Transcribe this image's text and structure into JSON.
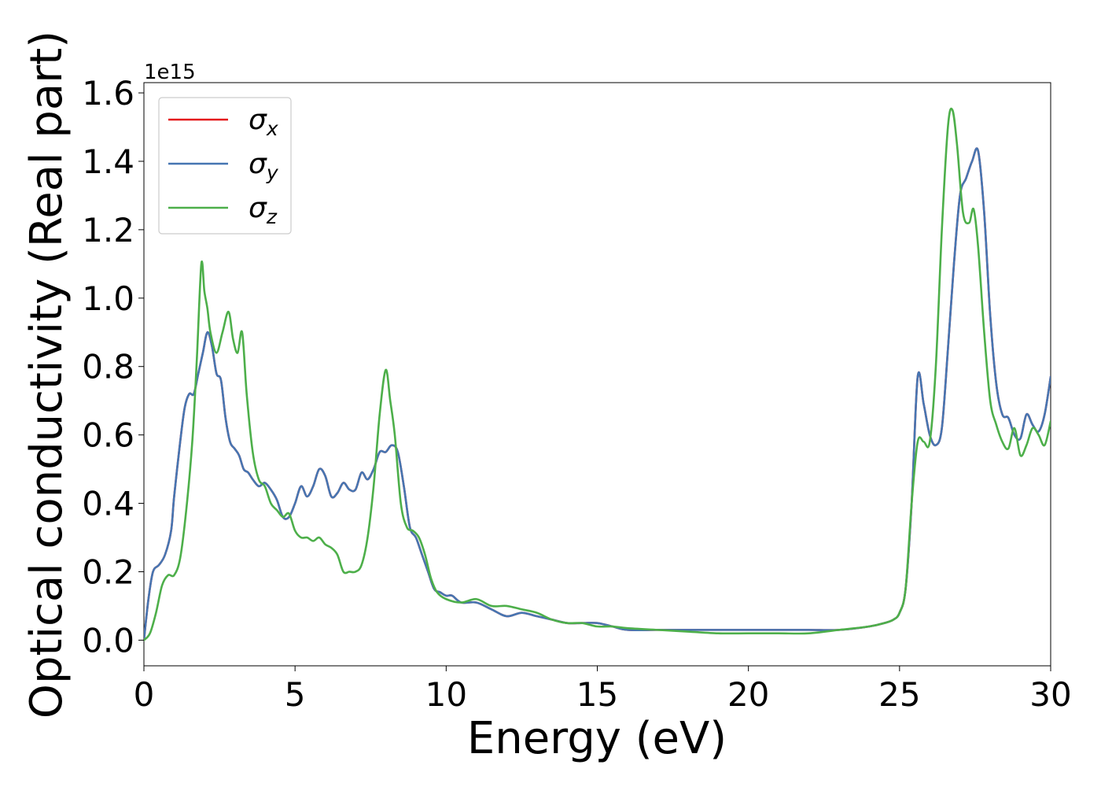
{
  "chart_data": {
    "type": "line",
    "title": "",
    "xlabel": "Energy (eV)",
    "ylabel": "Optical conductivity (Real part)",
    "offset_label": "1e15",
    "xlim": [
      0,
      30
    ],
    "ylim": [
      -0.075,
      1.63
    ],
    "xticks": [
      0,
      5,
      10,
      15,
      20,
      25,
      30
    ],
    "xtick_labels": [
      "0",
      "5",
      "10",
      "15",
      "20",
      "25",
      "30"
    ],
    "yticks": [
      0.0,
      0.2,
      0.4,
      0.6,
      0.8,
      1.0,
      1.2,
      1.4,
      1.6
    ],
    "ytick_labels": [
      "0.0",
      "0.2",
      "0.4",
      "0.6",
      "0.8",
      "1.0",
      "1.2",
      "1.4",
      "1.6"
    ],
    "grid": false,
    "legend_position": "top-left",
    "series": [
      {
        "name": "σx",
        "legend_symbol": "σ",
        "legend_sub": "x",
        "color": "#e41a1c",
        "x": [
          0,
          0.15,
          0.3,
          0.5,
          0.7,
          0.9,
          1.0,
          1.2,
          1.35,
          1.5,
          1.65,
          1.8,
          1.95,
          2.1,
          2.25,
          2.4,
          2.55,
          2.7,
          2.85,
          3.0,
          3.15,
          3.3,
          3.45,
          3.6,
          3.8,
          4.0,
          4.2,
          4.4,
          4.6,
          4.8,
          5.0,
          5.2,
          5.4,
          5.6,
          5.8,
          6.0,
          6.2,
          6.4,
          6.6,
          6.8,
          7.0,
          7.2,
          7.4,
          7.6,
          7.8,
          8.0,
          8.2,
          8.4,
          8.6,
          8.8,
          9.0,
          9.2,
          9.4,
          9.6,
          9.8,
          10.0,
          10.2,
          10.5,
          11.0,
          11.5,
          12.0,
          12.5,
          13.0,
          13.5,
          14.0,
          14.5,
          15.0,
          15.5,
          16.0,
          17.0,
          18.0,
          19.0,
          20.0,
          21.0,
          22.0,
          23.0,
          24.0,
          24.5,
          24.8,
          25.0,
          25.2,
          25.4,
          25.6,
          25.8,
          26.0,
          26.2,
          26.4,
          26.6,
          26.8,
          27.0,
          27.2,
          27.4,
          27.6,
          27.8,
          28.0,
          28.2,
          28.4,
          28.6,
          28.8,
          29.0,
          29.2,
          29.4,
          29.6,
          29.8,
          30.0
        ],
        "y": [
          0,
          0.12,
          0.2,
          0.22,
          0.25,
          0.32,
          0.42,
          0.58,
          0.68,
          0.72,
          0.72,
          0.78,
          0.84,
          0.9,
          0.86,
          0.78,
          0.76,
          0.65,
          0.58,
          0.56,
          0.54,
          0.5,
          0.49,
          0.47,
          0.45,
          0.46,
          0.44,
          0.41,
          0.36,
          0.36,
          0.4,
          0.45,
          0.42,
          0.45,
          0.5,
          0.48,
          0.42,
          0.43,
          0.46,
          0.44,
          0.44,
          0.49,
          0.47,
          0.5,
          0.55,
          0.55,
          0.57,
          0.55,
          0.45,
          0.33,
          0.3,
          0.25,
          0.2,
          0.15,
          0.14,
          0.13,
          0.13,
          0.11,
          0.11,
          0.09,
          0.07,
          0.08,
          0.07,
          0.06,
          0.05,
          0.05,
          0.05,
          0.04,
          0.03,
          0.03,
          0.03,
          0.03,
          0.03,
          0.03,
          0.03,
          0.03,
          0.04,
          0.05,
          0.06,
          0.08,
          0.15,
          0.4,
          0.77,
          0.69,
          0.6,
          0.57,
          0.62,
          0.85,
          1.1,
          1.3,
          1.35,
          1.4,
          1.43,
          1.25,
          0.95,
          0.75,
          0.66,
          0.65,
          0.6,
          0.59,
          0.66,
          0.63,
          0.61,
          0.66,
          0.77
        ]
      },
      {
        "name": "σy",
        "legend_symbol": "σ",
        "legend_sub": "y",
        "color": "#4676b2",
        "x": [
          0,
          0.15,
          0.3,
          0.5,
          0.7,
          0.9,
          1.0,
          1.2,
          1.35,
          1.5,
          1.65,
          1.8,
          1.95,
          2.1,
          2.25,
          2.4,
          2.55,
          2.7,
          2.85,
          3.0,
          3.15,
          3.3,
          3.45,
          3.6,
          3.8,
          4.0,
          4.2,
          4.4,
          4.6,
          4.8,
          5.0,
          5.2,
          5.4,
          5.6,
          5.8,
          6.0,
          6.2,
          6.4,
          6.6,
          6.8,
          7.0,
          7.2,
          7.4,
          7.6,
          7.8,
          8.0,
          8.2,
          8.4,
          8.6,
          8.8,
          9.0,
          9.2,
          9.4,
          9.6,
          9.8,
          10.0,
          10.2,
          10.5,
          11.0,
          11.5,
          12.0,
          12.5,
          13.0,
          13.5,
          14.0,
          14.5,
          15.0,
          15.5,
          16.0,
          17.0,
          18.0,
          19.0,
          20.0,
          21.0,
          22.0,
          23.0,
          24.0,
          24.5,
          24.8,
          25.0,
          25.2,
          25.4,
          25.6,
          25.8,
          26.0,
          26.2,
          26.4,
          26.6,
          26.8,
          27.0,
          27.2,
          27.4,
          27.6,
          27.8,
          28.0,
          28.2,
          28.4,
          28.6,
          28.8,
          29.0,
          29.2,
          29.4,
          29.6,
          29.8,
          30.0
        ],
        "y": [
          0,
          0.12,
          0.2,
          0.22,
          0.25,
          0.32,
          0.42,
          0.58,
          0.68,
          0.72,
          0.72,
          0.78,
          0.84,
          0.9,
          0.86,
          0.78,
          0.76,
          0.65,
          0.58,
          0.56,
          0.54,
          0.5,
          0.49,
          0.47,
          0.45,
          0.46,
          0.44,
          0.41,
          0.36,
          0.36,
          0.4,
          0.45,
          0.42,
          0.45,
          0.5,
          0.48,
          0.42,
          0.43,
          0.46,
          0.44,
          0.44,
          0.49,
          0.47,
          0.5,
          0.55,
          0.55,
          0.57,
          0.55,
          0.45,
          0.33,
          0.3,
          0.25,
          0.2,
          0.15,
          0.14,
          0.13,
          0.13,
          0.11,
          0.11,
          0.09,
          0.07,
          0.08,
          0.07,
          0.06,
          0.05,
          0.05,
          0.05,
          0.04,
          0.03,
          0.03,
          0.03,
          0.03,
          0.03,
          0.03,
          0.03,
          0.03,
          0.04,
          0.05,
          0.06,
          0.08,
          0.15,
          0.4,
          0.77,
          0.69,
          0.6,
          0.57,
          0.62,
          0.85,
          1.1,
          1.3,
          1.35,
          1.4,
          1.43,
          1.25,
          0.95,
          0.75,
          0.66,
          0.65,
          0.6,
          0.59,
          0.66,
          0.63,
          0.61,
          0.66,
          0.77
        ]
      },
      {
        "name": "σz",
        "legend_symbol": "σ",
        "legend_sub": "z",
        "color": "#4daf4a",
        "x": [
          0,
          0.2,
          0.4,
          0.6,
          0.8,
          1.0,
          1.2,
          1.4,
          1.6,
          1.75,
          1.9,
          2.0,
          2.1,
          2.2,
          2.4,
          2.6,
          2.8,
          2.95,
          3.1,
          3.25,
          3.4,
          3.6,
          3.8,
          4.0,
          4.2,
          4.4,
          4.6,
          4.8,
          5.0,
          5.2,
          5.4,
          5.6,
          5.8,
          6.0,
          6.2,
          6.4,
          6.6,
          6.8,
          7.0,
          7.2,
          7.4,
          7.6,
          7.8,
          8.0,
          8.15,
          8.3,
          8.5,
          8.7,
          8.9,
          9.1,
          9.3,
          9.5,
          9.7,
          10.0,
          10.5,
          11.0,
          11.5,
          12.0,
          12.5,
          13.0,
          13.5,
          14.0,
          14.5,
          15.0,
          15.5,
          16.0,
          17.0,
          18.0,
          19.0,
          20.0,
          21.0,
          22.0,
          23.0,
          24.0,
          24.5,
          24.8,
          25.0,
          25.2,
          25.4,
          25.6,
          25.8,
          26.0,
          26.2,
          26.4,
          26.6,
          26.75,
          26.9,
          27.1,
          27.3,
          27.45,
          27.6,
          27.8,
          28.0,
          28.2,
          28.4,
          28.6,
          28.8,
          29.0,
          29.2,
          29.4,
          29.6,
          29.8,
          30.0
        ],
        "y": [
          0,
          0.02,
          0.08,
          0.16,
          0.19,
          0.19,
          0.24,
          0.38,
          0.58,
          0.82,
          1.1,
          1.02,
          0.97,
          0.9,
          0.84,
          0.9,
          0.96,
          0.88,
          0.84,
          0.9,
          0.72,
          0.55,
          0.47,
          0.45,
          0.4,
          0.38,
          0.36,
          0.37,
          0.32,
          0.3,
          0.3,
          0.29,
          0.3,
          0.28,
          0.27,
          0.25,
          0.2,
          0.2,
          0.2,
          0.22,
          0.3,
          0.45,
          0.66,
          0.79,
          0.7,
          0.6,
          0.4,
          0.33,
          0.32,
          0.3,
          0.25,
          0.18,
          0.14,
          0.12,
          0.11,
          0.12,
          0.1,
          0.1,
          0.09,
          0.08,
          0.06,
          0.05,
          0.05,
          0.04,
          0.04,
          0.035,
          0.03,
          0.025,
          0.02,
          0.02,
          0.02,
          0.02,
          0.03,
          0.04,
          0.05,
          0.06,
          0.08,
          0.15,
          0.4,
          0.58,
          0.58,
          0.58,
          0.8,
          1.2,
          1.5,
          1.55,
          1.45,
          1.25,
          1.22,
          1.26,
          1.15,
          0.9,
          0.7,
          0.63,
          0.58,
          0.56,
          0.62,
          0.54,
          0.57,
          0.62,
          0.6,
          0.57,
          0.64
        ]
      }
    ]
  }
}
